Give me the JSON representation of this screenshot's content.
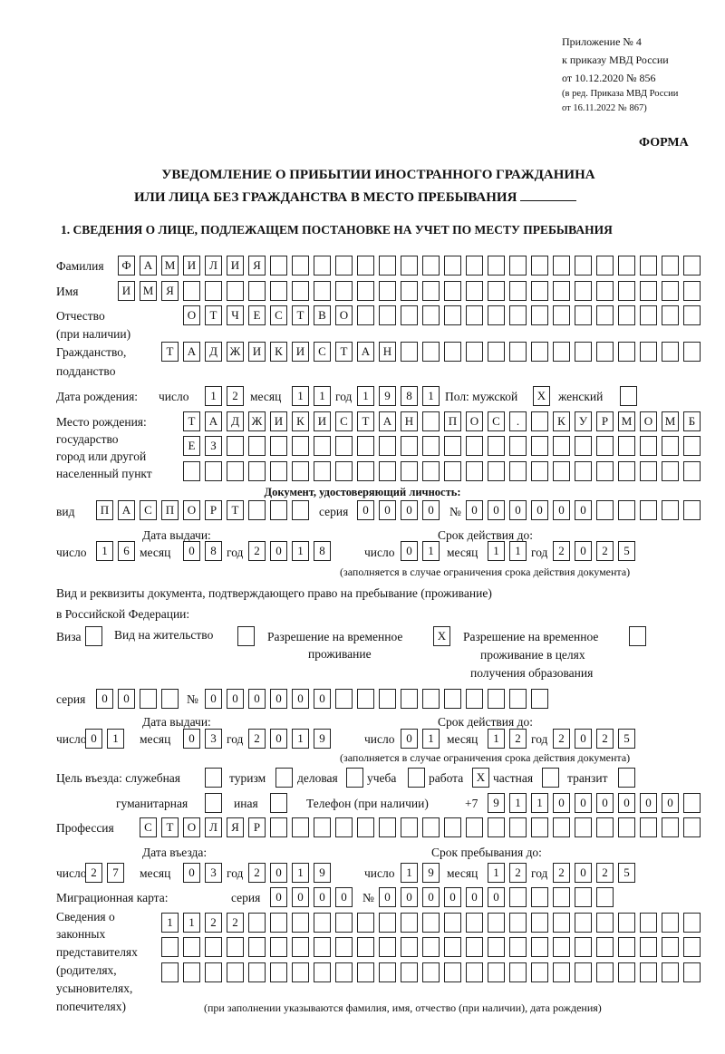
{
  "header": {
    "l1": "Приложение № 4",
    "l2": "к приказу МВД России",
    "l3": "от 10.12.2020 № 856",
    "l4": "(в ред. Приказа МВД России",
    "l5": "от 16.11.2022 № 867)",
    "forma": "ФОРМА"
  },
  "title": {
    "line1": "УВЕДОМЛЕНИЕ О ПРИБЫТИИ ИНОСТРАННОГО ГРАЖДАНИНА",
    "line2": "ИЛИ ЛИЦА БЕЗ ГРАЖДАНСТВА В МЕСТО ПРЕБЫВАНИЯ"
  },
  "section1": "1. СВЕДЕНИЯ О ЛИЦЕ, ПОДЛЕЖАЩЕМ ПОСТАНОВКЕ НА УЧЕТ ПО МЕСТУ ПРЕБЫВАНИЯ",
  "labels": {
    "surname": "Фамилия",
    "name": "Имя",
    "patronymic": "Отчество",
    "patronymic2": "(при наличии)",
    "citizenship": "Гражданство,",
    "citizenship2": "подданство",
    "birth_date": "Дата рождения:",
    "day": "число",
    "month": "месяц",
    "year": "год",
    "sex": "Пол: мужской",
    "female": "женский",
    "birthplace": "Место рождения:",
    "bp2": "государство",
    "bp3": "город или другой",
    "bp4": "населенный пункт",
    "id_doc": "Документ, удостоверяющий личность:",
    "kind": "вид",
    "series": "серия",
    "number": "№",
    "issue_date": "Дата выдачи:",
    "valid_until": "Срок действия до:",
    "valid_note": "(заполняется в случае ограничения срока действия документа)",
    "right_doc1": "Вид и реквизиты документа, подтверждающего право на пребывание (проживание)",
    "right_doc2": "в Российской Федерации:",
    "visa": "Виза",
    "residence": "Вид на жительство",
    "trp": "Разрешение на временное",
    "trp2": "проживание",
    "trp_edu": "Разрешение на временное",
    "trp_edu2": "проживание в целях",
    "trp_edu3": "получения образования",
    "purpose": "Цель въезда: служебная",
    "tourism": "туризм",
    "business": "деловая",
    "study": "учеба",
    "work": "работа",
    "private": "частная",
    "transit": "транзит",
    "humanitarian": "гуманитарная",
    "other": "иная",
    "phone": "Телефон (при наличии)",
    "phone_prefix": "+7",
    "profession": "Профессия",
    "entry_date": "Дата въезда:",
    "stay_until": "Срок пребывания до:",
    "migration_card": "Миграционная карта:",
    "reps1": "Сведения о",
    "reps2": "законных",
    "reps3": "представителях",
    "reps4": "(родителях,",
    "reps5": "усыновителях,",
    "reps6": "попечителях)",
    "reps_note": "(при заполнении указываются фамилия, имя, отчество (при наличии), дата рождения)"
  },
  "values": {
    "surname": "ФАМИЛИЯ",
    "name": "ИМЯ",
    "patronymic": "ОТЧЕСТВО",
    "citizenship": "ТАДЖИКИСТАН",
    "birth_day": "12",
    "birth_month": "11",
    "birth_year": "1981",
    "sex_male": "X",
    "sex_female": "",
    "birthplace1": "ТАДЖИКИСТАН ПОС. КУРМОМБ",
    "birthplace2": "ЕЗ",
    "birthplace3": "",
    "doc_kind": "ПАСПОРТ",
    "doc_series": "0000",
    "doc_number": "000000",
    "doc_issue_day": "16",
    "doc_issue_month": "08",
    "doc_issue_year": "2018",
    "doc_valid_day": "01",
    "doc_valid_month": "11",
    "doc_valid_year": "2025",
    "visa": "",
    "residence": "",
    "trp": "X",
    "trp_edu": "",
    "right_series": "00",
    "right_number": "000000",
    "right_issue_day": "01",
    "right_issue_month": "03",
    "right_issue_year": "2019",
    "right_valid_day": "01",
    "right_valid_month": "12",
    "right_valid_year": "2025",
    "p_service": "",
    "p_tourism": "",
    "p_business": "",
    "p_study": "",
    "p_work": "X",
    "p_private": "",
    "p_transit": "",
    "p_humanitarian": "",
    "p_other": "",
    "phone": "911000000",
    "profession": "СТОЛЯР",
    "entry_day": "27",
    "entry_month": "03",
    "entry_year": "2019",
    "stay_day": "19",
    "stay_month": "12",
    "stay_year": "2025",
    "mc_series": "0000",
    "mc_number": "000000",
    "reps1": "1122",
    "reps2": "",
    "reps3": ""
  }
}
